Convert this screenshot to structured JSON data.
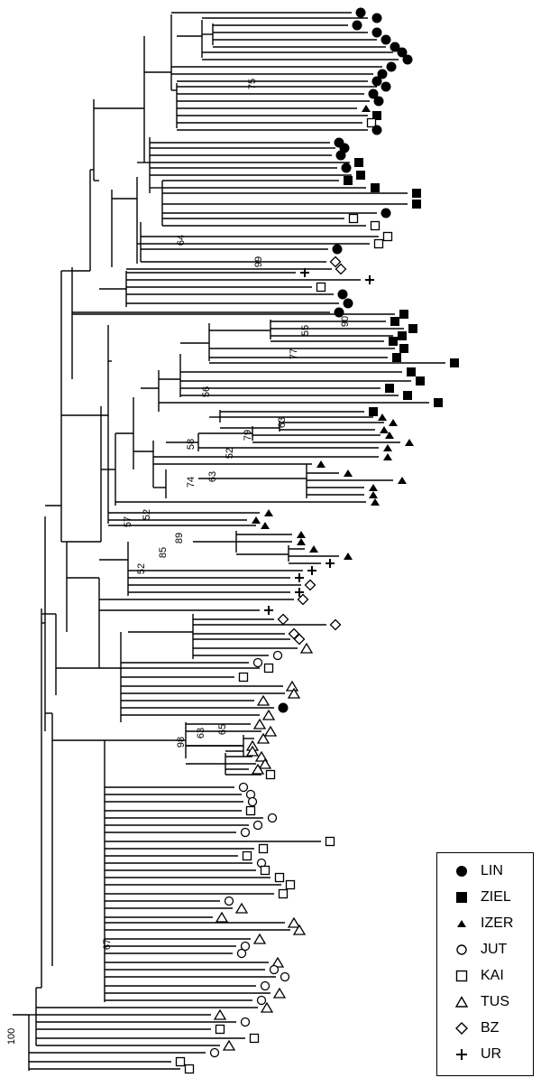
{
  "bootstrap_labels": [
    "75",
    "64",
    "99",
    "55",
    "90",
    "77",
    "56",
    "63",
    "79",
    "52",
    "58",
    "74",
    "63",
    "57",
    "52",
    "89",
    "85",
    "52",
    "98",
    "63",
    "65",
    "67",
    "100"
  ],
  "legend": [
    {
      "symbol": "filled-circle",
      "label": "LIN"
    },
    {
      "symbol": "filled-square",
      "label": "ZIEL"
    },
    {
      "symbol": "filled-triangle",
      "label": "IZER"
    },
    {
      "symbol": "open-circle",
      "label": "JUT"
    },
    {
      "symbol": "open-square",
      "label": "KAI"
    },
    {
      "symbol": "open-triangle",
      "label": "TUS"
    },
    {
      "symbol": "open-diamond",
      "label": "BZ"
    },
    {
      "symbol": "plus",
      "label": "UR"
    }
  ]
}
